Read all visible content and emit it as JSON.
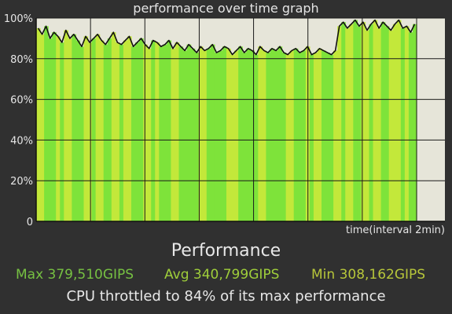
{
  "chart_data": {
    "type": "area",
    "title": "performance over time graph",
    "xlabel": "time(interval 2min)",
    "ylabel": "",
    "y_ticks": [
      "100%",
      "80%",
      "60%",
      "40%",
      "20%",
      "0"
    ],
    "ylim": [
      0,
      100
    ],
    "x_range_minutes": [
      0,
      30
    ],
    "grid": true,
    "y_values_percent": [
      95,
      92,
      96,
      90,
      93,
      91,
      88,
      94,
      90,
      92,
      89,
      86,
      91,
      88,
      90,
      92,
      89,
      87,
      90,
      93,
      88,
      87,
      89,
      91,
      86,
      88,
      90,
      87,
      85,
      89,
      88,
      86,
      87,
      89,
      85,
      88,
      86,
      84,
      87,
      85,
      83,
      86,
      84,
      85,
      87,
      83,
      84,
      86,
      85,
      82,
      84,
      86,
      83,
      85,
      84,
      82,
      86,
      84,
      83,
      85,
      84,
      86,
      83,
      82,
      84,
      85,
      83,
      84,
      86,
      82,
      83,
      85,
      84,
      83,
      82,
      84,
      96,
      98,
      95,
      97,
      99,
      96,
      98,
      94,
      97,
      99,
      95,
      98,
      96,
      94,
      97,
      99,
      95,
      96,
      93,
      97
    ]
  },
  "legend_text": {
    "heading": "Performance",
    "max": "Max 379,510GIPS",
    "avg": "Avg 340,799GIPS",
    "min": "Min 308,162GIPS",
    "throttle": "CPU throttled to 84% of its max performance"
  },
  "colors": {
    "background": "#303030",
    "plot_background": "#e6e5d9",
    "grid": "#1a1a1a",
    "line": "#111111",
    "bar_green": "#7ee33a",
    "bar_yellow_green": "#c3e83a",
    "max_text": "#76c042",
    "avg_text": "#9fce3a",
    "min_text": "#b7c63a"
  }
}
